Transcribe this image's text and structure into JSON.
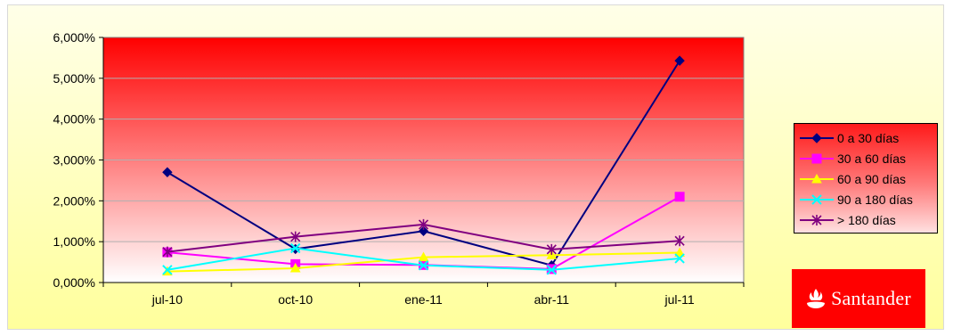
{
  "chart_data": {
    "type": "line",
    "title": "",
    "xlabel": "",
    "ylabel": "",
    "categories": [
      "jul-10",
      "oct-10",
      "ene-11",
      "abr-11",
      "jul-11"
    ],
    "y_tick_labels": [
      "0,000%",
      "1,000%",
      "2,000%",
      "3,000%",
      "4,000%",
      "5,000%",
      "6,000%"
    ],
    "ylim": [
      0,
      6
    ],
    "grid": true,
    "legend_position": "right",
    "series": [
      {
        "name": "0 a 30 días",
        "color": "#000080",
        "marker": "diamond",
        "values": [
          2.7,
          0.82,
          1.26,
          0.42,
          5.43
        ]
      },
      {
        "name": "30 a 60 días",
        "color": "#ff00ff",
        "marker": "square",
        "values": [
          0.74,
          0.45,
          0.43,
          0.33,
          2.1
        ]
      },
      {
        "name": "60 a 90 días",
        "color": "#ffff00",
        "marker": "triangle",
        "values": [
          0.27,
          0.35,
          0.62,
          0.67,
          0.73
        ]
      },
      {
        "name": "90 a 180 días",
        "color": "#00ffff",
        "marker": "x",
        "values": [
          0.31,
          0.84,
          0.42,
          0.31,
          0.59
        ]
      },
      {
        "name": "> 180 días",
        "color": "#800080",
        "marker": "star",
        "values": [
          0.75,
          1.12,
          1.42,
          0.81,
          1.02
        ]
      }
    ]
  },
  "logo": {
    "text": "Santander"
  }
}
